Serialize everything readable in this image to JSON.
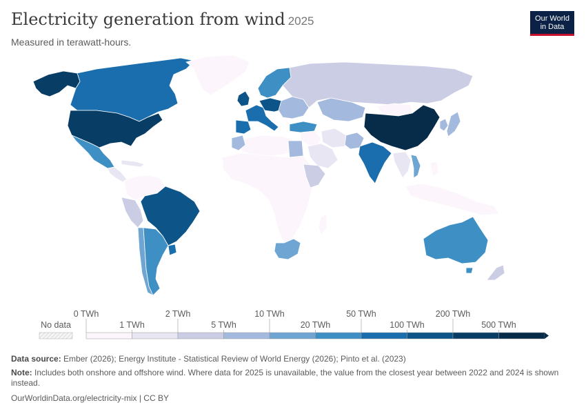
{
  "header": {
    "title": "Electricity generation from wind",
    "year": "2025",
    "subtitle": "Measured in terawatt-hours."
  },
  "logo": {
    "line1": "Our World",
    "line2": "in Data",
    "bg": "#0b2145",
    "accent": "#c8102e"
  },
  "legend": {
    "no_data_label": "No data",
    "top_labels": [
      "0 TWh",
      "2 TWh",
      "10 TWh",
      "50 TWh",
      "200 TWh"
    ],
    "bottom_labels": [
      "1 TWh",
      "5 TWh",
      "20 TWh",
      "100 TWh",
      "500 TWh"
    ],
    "bins": [
      {
        "color": "#fcf5fb"
      },
      {
        "color": "#e8e6f2"
      },
      {
        "color": "#cbcde5"
      },
      {
        "color": "#a3b9dd"
      },
      {
        "color": "#6fa5d2"
      },
      {
        "color": "#3d8fc4"
      },
      {
        "color": "#1a6eae"
      },
      {
        "color": "#0d5488"
      },
      {
        "color": "#083d66"
      },
      {
        "color": "#072c4a"
      }
    ]
  },
  "footer": {
    "source_label": "Data source:",
    "source_text": "Ember (2026); Energy Institute - Statistical Review of World Energy (2026); Pinto et al. (2023)",
    "note_label": "Note:",
    "note_text": "Includes both onshore and offshore wind. Where data for 2025 is unavailable, the value from the closest year between 2022 and 2024 is shown instead.",
    "url_text": "OurWorldinData.org/electricity-mix | CC BY"
  },
  "map": {
    "regions": [
      {
        "name": "canada",
        "bin": 6
      },
      {
        "name": "alaska",
        "bin": 8
      },
      {
        "name": "greenland",
        "bin": 0
      },
      {
        "name": "usa",
        "bin": 8
      },
      {
        "name": "mexico",
        "bin": 5
      },
      {
        "name": "central-america",
        "bin": 1
      },
      {
        "name": "colombia-venezuela",
        "bin": 0
      },
      {
        "name": "peru",
        "bin": 2
      },
      {
        "name": "brazil",
        "bin": 7
      },
      {
        "name": "argentina",
        "bin": 5
      },
      {
        "name": "chile",
        "bin": 4
      },
      {
        "name": "uruguay",
        "bin": 6
      },
      {
        "name": "europe-west",
        "bin": 6
      },
      {
        "name": "germany",
        "bin": 7
      },
      {
        "name": "uk",
        "bin": 7
      },
      {
        "name": "spain",
        "bin": 6
      },
      {
        "name": "scandinavia",
        "bin": 5
      },
      {
        "name": "eastern-europe",
        "bin": 3
      },
      {
        "name": "turkey",
        "bin": 5
      },
      {
        "name": "russia",
        "bin": 2
      },
      {
        "name": "kazakhstan",
        "bin": 3
      },
      {
        "name": "north-africa",
        "bin": 0
      },
      {
        "name": "morocco",
        "bin": 3
      },
      {
        "name": "egypt",
        "bin": 3
      },
      {
        "name": "sub-saharan-africa",
        "bin": 0
      },
      {
        "name": "kenya-ethiopia",
        "bin": 2
      },
      {
        "name": "south-africa",
        "bin": 4
      },
      {
        "name": "middle-east",
        "bin": 0
      },
      {
        "name": "iran",
        "bin": 1
      },
      {
        "name": "saudi-arabia",
        "bin": 1
      },
      {
        "name": "pakistan",
        "bin": 3
      },
      {
        "name": "india",
        "bin": 6
      },
      {
        "name": "china",
        "bin": 9
      },
      {
        "name": "mongolia",
        "bin": 0
      },
      {
        "name": "japan",
        "bin": 3
      },
      {
        "name": "korea",
        "bin": 3
      },
      {
        "name": "southeast-asia",
        "bin": 1
      },
      {
        "name": "vietnam",
        "bin": 4
      },
      {
        "name": "indonesia",
        "bin": 0
      },
      {
        "name": "philippines",
        "bin": 0
      },
      {
        "name": "australia",
        "bin": 5
      },
      {
        "name": "new-zealand",
        "bin": 2
      }
    ]
  }
}
